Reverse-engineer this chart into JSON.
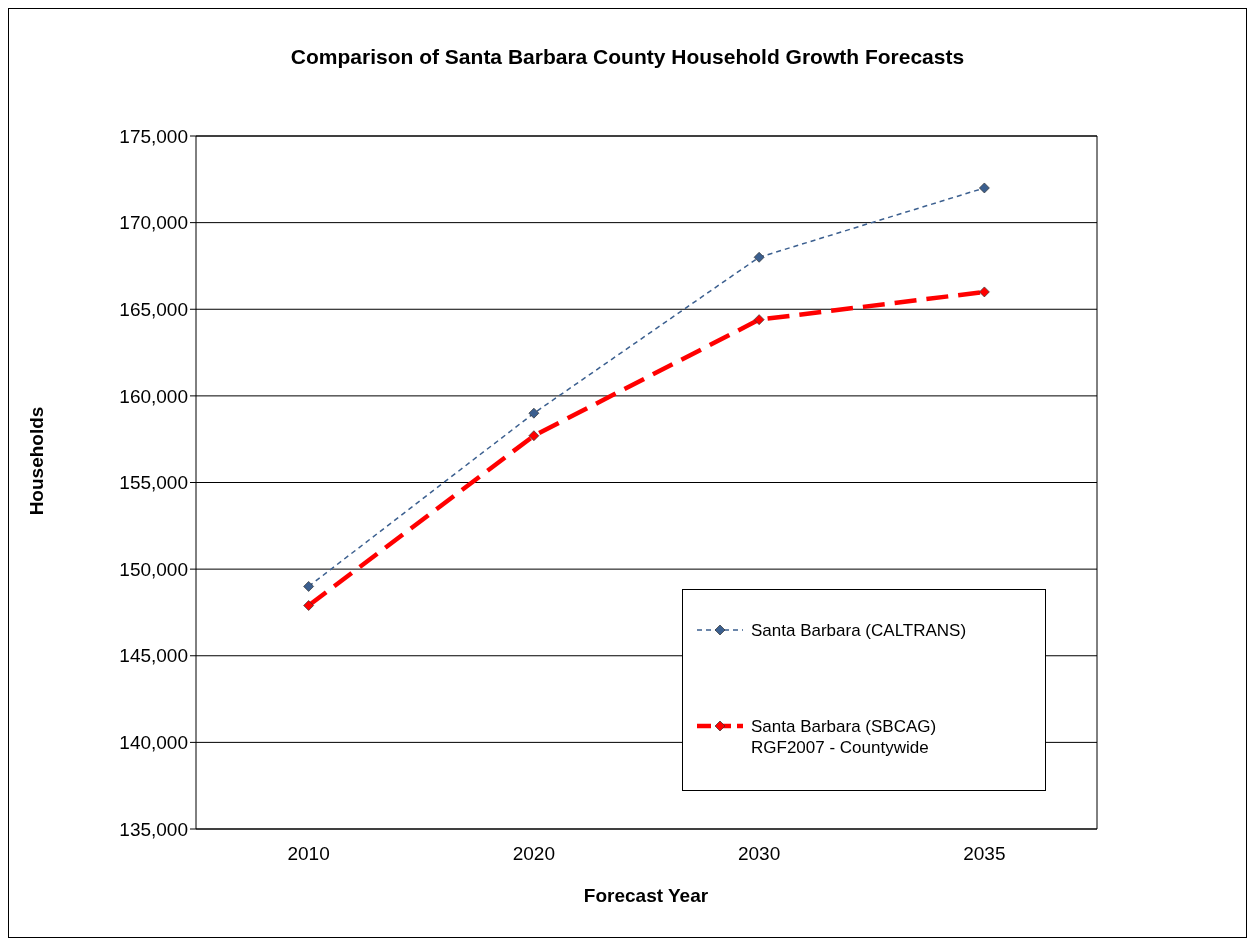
{
  "chart_data": {
    "type": "line",
    "title": "Comparison of Santa Barbara County Household Growth Forecasts",
    "xlabel": "Forecast Year",
    "ylabel": "Households",
    "categories": [
      "2010",
      "2020",
      "2030",
      "2035"
    ],
    "series": [
      {
        "name": "Santa Barbara (CALTRANS)",
        "color": "#3b5f8f",
        "values": [
          149000,
          159000,
          168000,
          172000
        ],
        "line_style": "dashed"
      },
      {
        "name": "Santa Barbara (SBCAG)\nRGF2007 - Countywide",
        "color": "#ff0000",
        "values": [
          147900,
          157700,
          164400,
          166000
        ],
        "line_style": "dashed"
      }
    ],
    "ylim": [
      135000,
      175000
    ],
    "yticks": [
      {
        "value": 135000,
        "label": "135,000"
      },
      {
        "value": 140000,
        "label": "140,000"
      },
      {
        "value": 145000,
        "label": "145,000"
      },
      {
        "value": 150000,
        "label": "150,000"
      },
      {
        "value": 155000,
        "label": "155,000"
      },
      {
        "value": 160000,
        "label": "160,000"
      },
      {
        "value": 165000,
        "label": "165,000"
      },
      {
        "value": 170000,
        "label": "170,000"
      },
      {
        "value": 175000,
        "label": "175,000"
      }
    ],
    "grid": "y",
    "legend": "bottom right",
    "marker": "diamond"
  }
}
